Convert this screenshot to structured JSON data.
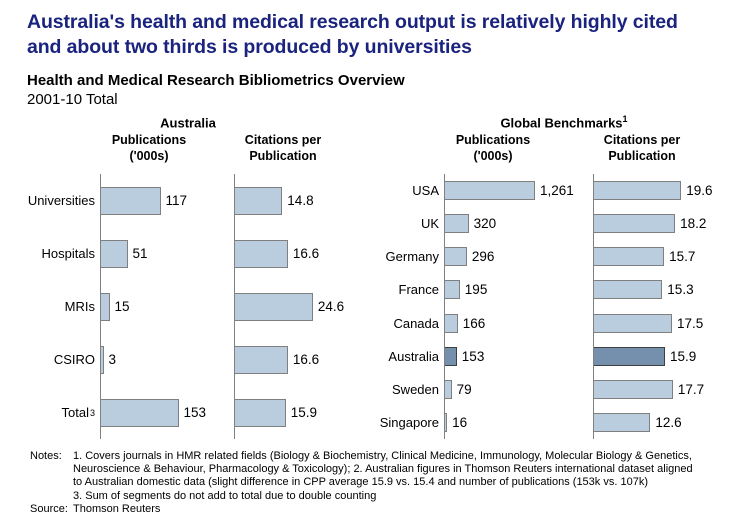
{
  "title": {
    "lines": [
      "Australia's health and medical research output is relatively highly cited",
      "and about two thirds is produced by universities"
    ]
  },
  "subtitle": "Health and Medical Research Bibliometrics Overview",
  "period": "2001-10 Total",
  "panels": [
    {
      "title": "Australia",
      "title_sup": ""
    },
    {
      "title": "Global Benchmarks",
      "title_sup": "1"
    }
  ],
  "chart_data": [
    {
      "type": "bar",
      "orientation": "horizontal",
      "panel": "Australia",
      "title": "Publications ('000s)",
      "title_lines": [
        "Publications",
        "('000s)"
      ],
      "categories": [
        "Universities",
        "Hospitals",
        "MRIs",
        "CSIRO",
        "Total"
      ],
      "category_sups": [
        "",
        "",
        "",
        "",
        "3"
      ],
      "values": [
        117,
        51,
        15,
        3,
        153
      ],
      "value_labels": [
        "117",
        "51",
        "15",
        "3",
        "153"
      ],
      "xlim": [
        0,
        160
      ],
      "grid": false,
      "highlight_index": -1
    },
    {
      "type": "bar",
      "orientation": "horizontal",
      "panel": "Australia",
      "title": "Citations per Publication",
      "title_lines": [
        "Citations per",
        "Publication"
      ],
      "categories": [
        "Universities",
        "Hospitals",
        "MRIs",
        "CSIRO",
        "Total"
      ],
      "category_sups": [
        "",
        "",
        "",
        "",
        "3"
      ],
      "values": [
        14.8,
        16.6,
        24.6,
        16.6,
        15.9
      ],
      "value_labels": [
        "14.8",
        "16.6",
        "24.6",
        "16.6",
        "15.9"
      ],
      "xlim": [
        0,
        25.6
      ],
      "grid": false,
      "highlight_index": -1
    },
    {
      "type": "bar",
      "orientation": "horizontal",
      "panel": "Global Benchmarks",
      "title": "Publications ('000s)",
      "title_lines": [
        "Publications",
        "('000s)"
      ],
      "categories": [
        "USA",
        "UK",
        "Germany",
        "France",
        "Canada",
        "Australia",
        "Sweden",
        "Singapore"
      ],
      "category_sups": [
        "",
        "",
        "",
        "",
        "",
        "",
        "",
        ""
      ],
      "values": [
        1261,
        320,
        296,
        195,
        166,
        153,
        79,
        16
      ],
      "value_labels": [
        "1,261",
        "320",
        "296",
        "195",
        "166",
        "153",
        "79",
        "16"
      ],
      "xlim": [
        0,
        1261
      ],
      "grid": false,
      "highlight_index": 5
    },
    {
      "type": "bar",
      "orientation": "horizontal",
      "panel": "Global Benchmarks",
      "title": "Citations per Publication",
      "title_lines": [
        "Citations per",
        "Publication"
      ],
      "categories": [
        "USA",
        "UK",
        "Germany",
        "France",
        "Canada",
        "Australia",
        "Sweden",
        "Singapore"
      ],
      "category_sups": [
        "",
        "",
        "",
        "",
        "",
        "",
        "",
        ""
      ],
      "values": [
        19.6,
        18.2,
        15.7,
        15.3,
        17.5,
        15.9,
        17.7,
        12.6
      ],
      "value_labels": [
        "19.6",
        "18.2",
        "15.7",
        "15.3",
        "17.5",
        "15.9",
        "17.7",
        "12.6"
      ],
      "xlim": [
        0,
        20
      ],
      "grid": false,
      "highlight_index": 5
    }
  ],
  "notes": {
    "label": "Notes:",
    "lines": [
      "1. Covers journals in HMR related fields (Biology & Biochemistry, Clinical Medicine, Immunology, Molecular Biology & Genetics,",
      "Neuroscience & Behaviour, Pharmacology & Toxicology); 2. Australian figures in Thomson Reuters international dataset aligned",
      "to Australian domestic data (slight difference in CPP average 15.9 vs. 15.4 and number of publications (153k vs. 107k)",
      "3. Sum of segments do not add to total due to double counting"
    ],
    "source_label": "Source:",
    "source": "Thomson Reuters"
  },
  "colors": {
    "title_color": "#1a237e",
    "text_color": "#000000",
    "bar_fill": "#b9cdde",
    "bar_border": "#7f7f7f",
    "highlight_fill": "#7490ad",
    "highlight_border": "#404040",
    "axis_color": "#808080"
  }
}
